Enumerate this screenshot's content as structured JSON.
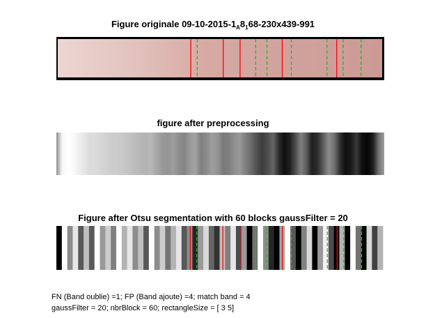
{
  "titles": {
    "original_pre": "Figure originale 09-10-2015-1",
    "original_sub1": "A",
    "original_mid": "8",
    "original_sub2": "1",
    "original_post": "68-230x439-991",
    "preprocessing": "figure after preprocessing",
    "otsu": "Figure after Otsu segmentation with 60 blocks gaussFilter = 20"
  },
  "info": {
    "line1": "FN (Band oublie) =1; FP (Band ajoute) =4; match band = 4",
    "line2": "gaussFilter = 20; nbrBlock = 60; rectangleSize = [ 3  5]"
  },
  "colors": {
    "strip_base": "#d4a49f",
    "strip_edge": "#e8cfcb",
    "red_band": "#ff0000",
    "green_band": "#22bb22",
    "black": "#000000"
  },
  "original": {
    "red_bands": [
      0.41,
      0.51,
      0.562,
      0.692,
      0.86
    ],
    "green_bands": [
      0.43,
      0.61,
      0.645,
      0.72,
      0.83,
      0.88,
      0.935
    ]
  },
  "preprocessing": {
    "gray_levels": [
      0.55,
      0.96,
      1.0,
      0.98,
      0.94,
      0.9,
      0.86,
      0.86,
      0.84,
      0.82,
      0.8,
      0.8,
      0.78,
      0.76,
      0.74,
      0.72,
      0.7,
      0.72,
      0.66,
      0.6,
      0.58,
      0.62,
      0.56,
      0.52,
      0.6,
      0.64,
      0.5,
      0.54,
      0.62,
      0.58,
      0.48,
      0.5,
      0.56,
      0.6,
      0.5,
      0.42,
      0.32,
      0.24,
      0.3,
      0.4,
      0.18,
      0.06,
      0.12,
      0.3,
      0.5,
      0.36,
      0.12,
      0.18,
      0.36,
      0.55,
      0.45,
      0.2,
      0.06,
      0.1,
      0.22,
      0.06,
      0.02,
      0.12,
      0.45,
      0.62
    ]
  },
  "otsu": {
    "gray_levels": [
      0.0,
      1.0,
      0.55,
      0.9,
      0.35,
      0.75,
      0.35,
      1.0,
      0.6,
      0.8,
      0.5,
      1.0,
      0.7,
      0.9,
      0.55,
      0.75,
      0.35,
      1.0,
      0.55,
      0.8,
      0.45,
      0.7,
      0.9,
      0.35,
      0.55,
      0.15,
      0.6,
      0.85,
      0.4,
      0.2,
      0.75,
      0.5,
      0.9,
      0.3,
      0.6,
      0.0,
      0.45,
      1.0,
      0.55,
      0.15,
      0.0,
      0.65,
      1.0,
      0.35,
      0.0,
      0.5,
      0.85,
      0.0,
      0.6,
      0.95,
      0.3,
      0.0,
      0.7,
      0.0,
      1.0,
      0.45,
      0.0,
      0.85,
      0.25,
      0.7
    ],
    "red_bands": [
      0.41,
      0.51,
      0.562,
      0.692,
      0.86
    ],
    "green_bands": [
      0.43,
      0.61,
      0.645,
      0.72,
      0.83,
      0.88,
      0.935
    ]
  }
}
